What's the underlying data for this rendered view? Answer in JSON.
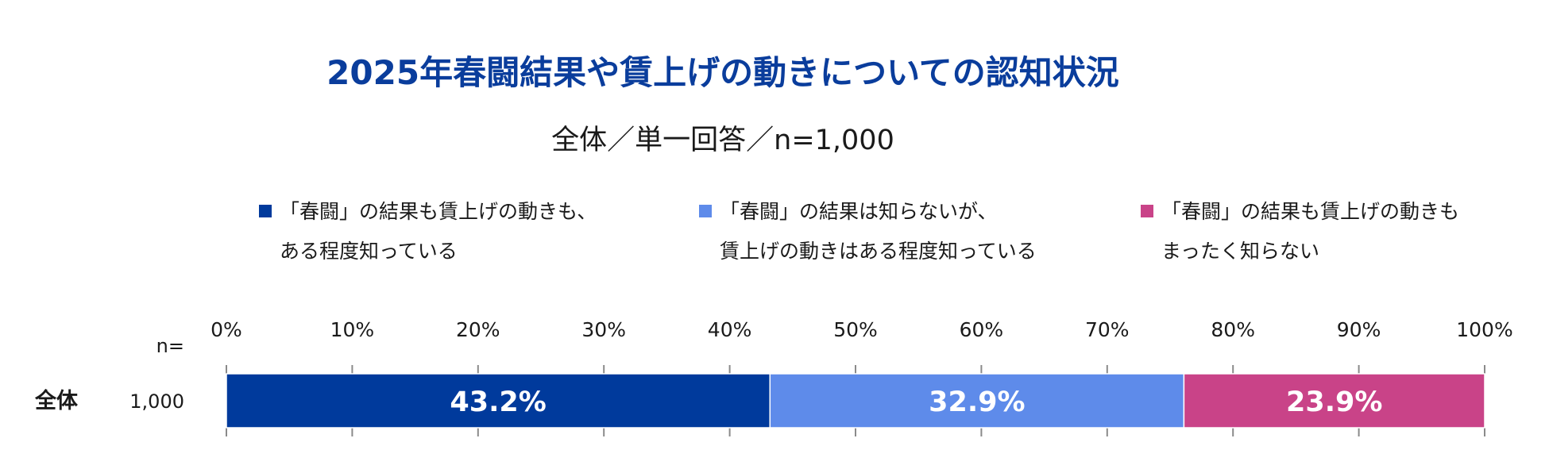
{
  "chart_data": {
    "type": "bar",
    "orientation": "horizontal",
    "stacked": true,
    "title": "2025年春闘結果や賃上げの動きについての認知状況",
    "subtitle": "全体／単一回答／n=1,000",
    "n_header": "n=",
    "x_ticks": [
      "0%",
      "10%",
      "20%",
      "30%",
      "40%",
      "50%",
      "60%",
      "70%",
      "80%",
      "90%",
      "100%"
    ],
    "xlim": [
      0,
      100
    ],
    "categories": [
      {
        "label": "全体",
        "n": "1,000"
      }
    ],
    "series": [
      {
        "name": "「春闘」の結果も賃上げの動きも、ある程度知っている",
        "legend_line1": "「春闘」の結果も賃上げの動きも、",
        "legend_line2": "ある程度知っている",
        "color": "#003a9c",
        "values": [
          43.2
        ],
        "value_labels": [
          "43.2%"
        ]
      },
      {
        "name": "「春闘」の結果は知らないが、賃上げの動きはある程度知っている",
        "legend_line1": "「春闘」の結果は知らないが、",
        "legend_line2": "賃上げの動きはある程度知っている",
        "color": "#5e8bea",
        "values": [
          32.9
        ],
        "value_labels": [
          "32.9%"
        ]
      },
      {
        "name": "「春闘」の結果も賃上げの動きもまったく知らない",
        "legend_line1": "「春闘」の結果も賃上げの動きも",
        "legend_line2": "まったく知らない",
        "color": "#c94388",
        "values": [
          23.9
        ],
        "value_labels": [
          "23.9%"
        ]
      }
    ],
    "legend_position": "top",
    "grid": false
  }
}
